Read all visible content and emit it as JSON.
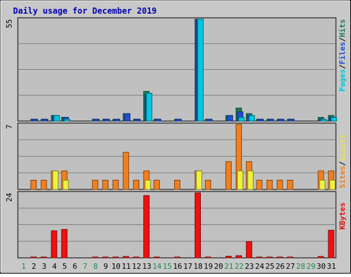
{
  "chart_data": {
    "type": "bar",
    "title": "Daily usage for December 2019",
    "categories": [
      "1",
      "2",
      "3",
      "4",
      "5",
      "6",
      "7",
      "8",
      "9",
      "10",
      "11",
      "12",
      "13",
      "14",
      "15",
      "16",
      "17",
      "18",
      "19",
      "20",
      "21",
      "22",
      "23",
      "24",
      "25",
      "26",
      "27",
      "28",
      "29",
      "30",
      "31"
    ],
    "weekend_days": [
      "1",
      "7",
      "8",
      "14",
      "15",
      "21",
      "22",
      "28",
      "29"
    ],
    "panels": [
      {
        "id": "hits",
        "ymax": 55,
        "ymax_label": "55",
        "side_label": [
          {
            "text": "Pages",
            "color": "#00c8e0"
          },
          {
            "text": "/",
            "color": "#000000"
          },
          {
            "text": "Files",
            "color": "#1e50d0"
          },
          {
            "text": "/",
            "color": "#000000"
          },
          {
            "text": "Hits",
            "color": "#1e7a5a"
          }
        ],
        "series": [
          {
            "name": "Hits",
            "color": "#1e7a5a",
            "values": [
              0,
              1,
              1,
              3,
              2,
              0,
              0,
              1,
              1,
              1,
              4,
              1,
              16,
              1,
              0,
              1,
              0,
              55,
              1,
              0,
              3,
              7,
              4,
              1,
              1,
              1,
              1,
              0,
              0,
              2,
              3
            ]
          },
          {
            "name": "Files",
            "color": "#1e50d0",
            "values": [
              0,
              1,
              1,
              3,
              2,
              0,
              0,
              1,
              1,
              1,
              4,
              1,
              14,
              1,
              0,
              1,
              0,
              55,
              1,
              0,
              3,
              5,
              3,
              1,
              1,
              1,
              1,
              0,
              0,
              1,
              2
            ]
          },
          {
            "name": "Pages",
            "color": "#00c8e0",
            "values": [
              0,
              0,
              0,
              3,
              1,
              0,
              0,
              0,
              0,
              0,
              0,
              0,
              15,
              0,
              0,
              0,
              0,
              55,
              0,
              0,
              0,
              2,
              3,
              0,
              0,
              0,
              0,
              0,
              0,
              1,
              2
            ]
          }
        ]
      },
      {
        "id": "visits",
        "ymax": 7,
        "ymax_label": "7",
        "side_label": [
          {
            "text": "Sites",
            "color": "#f08020"
          },
          {
            "text": "/",
            "color": "#000000"
          },
          {
            "text": "Visits",
            "color": "#e8e050"
          }
        ],
        "series": [
          {
            "name": "Visits",
            "color": "#f08020",
            "values": [
              0,
              1,
              1,
              2,
              2,
              0,
              0,
              1,
              1,
              1,
              4,
              1,
              2,
              1,
              0,
              1,
              0,
              2,
              1,
              0,
              3,
              7,
              3,
              1,
              1,
              1,
              1,
              0,
              0,
              2,
              2
            ]
          },
          {
            "name": "Sites",
            "color": "#f0f040",
            "values": [
              0,
              0,
              0,
              2,
              1,
              0,
              0,
              0,
              0,
              0,
              0,
              0,
              1,
              0,
              0,
              0,
              0,
              2,
              0,
              0,
              0,
              2,
              2,
              0,
              0,
              0,
              0,
              0,
              0,
              1,
              1
            ]
          }
        ]
      },
      {
        "id": "kbytes",
        "ymax": 24,
        "ymax_label": "24",
        "side_label": [
          {
            "text": "KBytes",
            "color": "#e01010"
          }
        ],
        "series": [
          {
            "name": "KBytes",
            "color": "#f01010",
            "values": [
              0,
              0.3,
              0.3,
              10,
              10.5,
              0,
              0,
              0.3,
              0.3,
              0.3,
              0.5,
              0.3,
              23,
              0.3,
              0,
              0.3,
              0,
              24,
              0.3,
              0,
              0.6,
              0.8,
              6,
              0.3,
              0.3,
              0.3,
              0.3,
              0,
              0,
              0.5,
              10.2
            ]
          }
        ]
      }
    ]
  }
}
